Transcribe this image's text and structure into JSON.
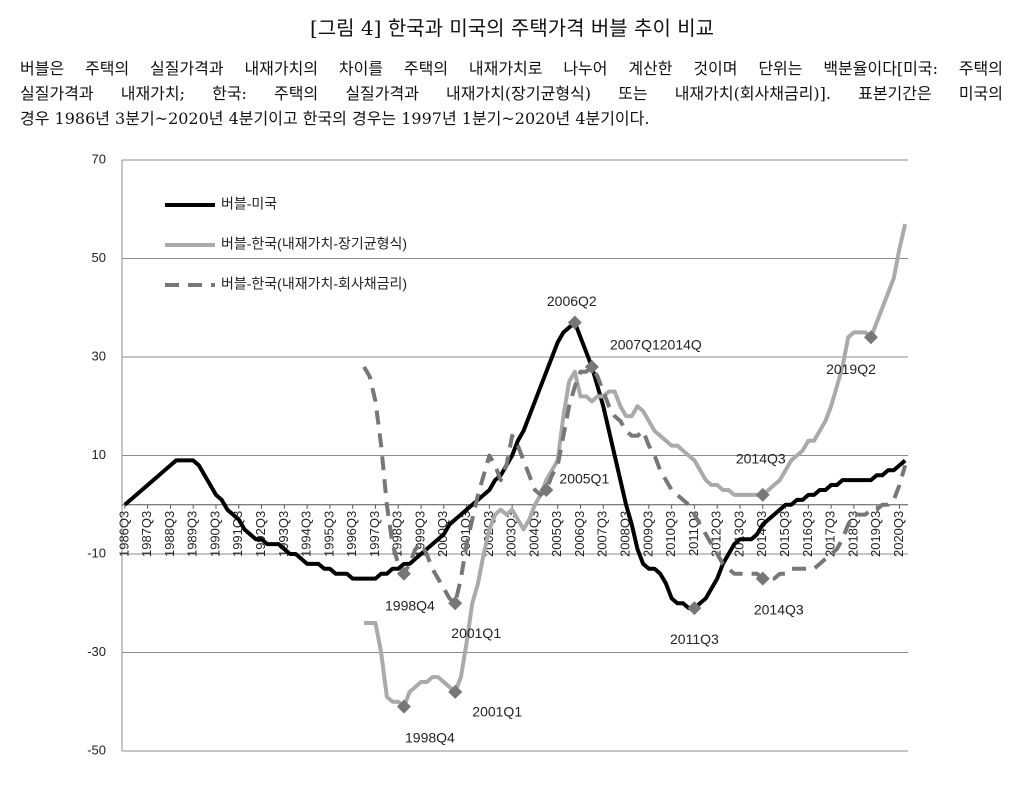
{
  "chart_data": {
    "type": "line",
    "title": "[그림 4] 한국과 미국의 주택가격 버블 추이 비교",
    "caption": [
      "버블은 주택의 실질가격과 내재가치의 차이를 주택의 내재가치로 나누어 계산한 것이며 단위는 백분율이다[미국: 주택의",
      "실질가격과 내재가치; 한국: 주택의 실질가격과 내재가치(장기균형식) 또는 내재가치(회사채금리)]. 표본기간은 미국의",
      "경우 1986년 3분기~2020년 4분기이고 한국의 경우는 1997년 1분기~2020년 4분기이다."
    ],
    "ylim": [
      -50,
      70
    ],
    "yticks": [
      -50,
      -30,
      -10,
      10,
      30,
      50,
      70
    ],
    "grid": true,
    "legend": "upper left",
    "categories": [
      "1986Q3",
      null,
      null,
      null,
      "1987Q3",
      null,
      null,
      null,
      "1988Q3",
      null,
      null,
      null,
      "1989Q3",
      null,
      null,
      null,
      "1990Q3",
      null,
      null,
      null,
      "1991Q3",
      null,
      null,
      null,
      "1992Q3",
      null,
      null,
      null,
      "1993Q3",
      null,
      null,
      null,
      "1994Q3",
      null,
      null,
      null,
      "1995Q3",
      null,
      null,
      null,
      "1996Q3",
      null,
      null,
      null,
      "1997Q3",
      null,
      null,
      null,
      "1998Q3",
      null,
      null,
      null,
      "1999Q3",
      null,
      null,
      null,
      "2000Q3",
      null,
      null,
      null,
      "2001Q3",
      null,
      null,
      null,
      "2002Q3",
      null,
      null,
      null,
      "2003Q3",
      null,
      null,
      null,
      "2004Q3",
      null,
      null,
      null,
      "2005Q3",
      null,
      null,
      null,
      "2006Q3",
      null,
      null,
      null,
      "2007Q3",
      null,
      null,
      null,
      "2008Q3",
      null,
      null,
      null,
      "2009Q3",
      null,
      null,
      null,
      "2010Q3",
      null,
      null,
      null,
      "2011Q3",
      null,
      null,
      null,
      "2012Q3",
      null,
      null,
      null,
      "2013Q3",
      null,
      null,
      null,
      "2014Q3",
      null,
      null,
      null,
      "2015Q3",
      null,
      null,
      null,
      "2016Q3",
      null,
      null,
      null,
      "2017Q3",
      null,
      null,
      null,
      "2018Q3",
      null,
      null,
      null,
      "2019Q3",
      null,
      null,
      null,
      "2020Q3",
      null
    ],
    "series": [
      {
        "name": "버블-미국",
        "color": "#000000",
        "linestyle": "solid",
        "values": [
          0,
          1,
          2,
          3,
          4,
          5,
          6,
          7,
          8,
          9,
          9,
          9,
          9,
          8,
          6,
          4,
          2,
          1,
          -1,
          -2,
          -3,
          -5,
          -6,
          -7,
          -7,
          -8,
          -8,
          -8,
          -9,
          -10,
          -10,
          -11,
          -12,
          -12,
          -12,
          -13,
          -13,
          -14,
          -14,
          -14,
          -15,
          -15,
          -15,
          -15,
          -15,
          -14,
          -14,
          -13,
          -13,
          -12,
          -12,
          -11,
          -10,
          -9,
          -8,
          -7,
          -6,
          -4,
          -3,
          -2,
          -1,
          0,
          1,
          2,
          3,
          5,
          6,
          8,
          10,
          13,
          15,
          18,
          21,
          24,
          27,
          30,
          33,
          35,
          36,
          37,
          34,
          31,
          28,
          24,
          20,
          15,
          10,
          5,
          0,
          -4,
          -9,
          -12,
          -13,
          -13,
          -14,
          -16,
          -19,
          -20,
          -20,
          -21,
          -21,
          -20,
          -19,
          -17,
          -15,
          -12,
          -10,
          -8,
          -7,
          -7,
          -7,
          -6,
          -4,
          -3,
          -2,
          -1,
          0,
          0,
          1,
          1,
          2,
          2,
          3,
          3,
          4,
          4,
          5,
          5,
          5,
          5,
          5,
          5,
          6,
          6,
          7,
          7,
          8,
          9
        ]
      },
      {
        "name": "버블-한국(내재가치-장기균형식)",
        "color": "#aaaaaa",
        "linestyle": "solid",
        "values": [
          null,
          null,
          null,
          null,
          null,
          null,
          null,
          null,
          null,
          null,
          null,
          null,
          null,
          null,
          null,
          null,
          null,
          null,
          null,
          null,
          null,
          null,
          null,
          null,
          null,
          null,
          null,
          null,
          null,
          null,
          null,
          null,
          null,
          null,
          null,
          null,
          null,
          null,
          null,
          null,
          null,
          null,
          -24,
          -24,
          -24,
          -30,
          -39,
          -40,
          -40,
          -41,
          -38,
          -37,
          -36,
          -36,
          -35,
          -35,
          -36,
          -37,
          -38,
          -35,
          -28,
          -20,
          -16,
          -10,
          -5,
          -2,
          -1,
          -2,
          -1,
          -3,
          -5,
          -3,
          0,
          2,
          5,
          7,
          9,
          18,
          25,
          27,
          22,
          22,
          21,
          22,
          22,
          23,
          23,
          20,
          18,
          18,
          20,
          19,
          17,
          15,
          14,
          13,
          12,
          12,
          11,
          10,
          9,
          7,
          5,
          4,
          4,
          3,
          3,
          2,
          2,
          2,
          2,
          2,
          2,
          3,
          4,
          5,
          7,
          9,
          10,
          11,
          13,
          13,
          15,
          17,
          20,
          24,
          28,
          34,
          35,
          35,
          35,
          34,
          37,
          40,
          43,
          46,
          52,
          57
        ]
      },
      {
        "name": "버블-한국(내재가치-회사채금리)",
        "color": "#777777",
        "linestyle": "dashed",
        "values": [
          null,
          null,
          null,
          null,
          null,
          null,
          null,
          null,
          null,
          null,
          null,
          null,
          null,
          null,
          null,
          null,
          null,
          null,
          null,
          null,
          null,
          null,
          null,
          null,
          null,
          null,
          null,
          null,
          null,
          null,
          null,
          null,
          null,
          null,
          null,
          null,
          null,
          null,
          null,
          null,
          null,
          null,
          28,
          26,
          21,
          12,
          0,
          -8,
          -12,
          -14,
          -12,
          -9,
          -8,
          -10,
          -13,
          -15,
          -17,
          -19,
          -20,
          -15,
          -8,
          -3,
          2,
          6,
          10,
          8,
          5,
          8,
          14,
          12,
          9,
          6,
          3,
          2,
          3,
          6,
          8,
          14,
          20,
          24,
          27,
          27,
          28,
          26,
          23,
          20,
          18,
          17,
          15,
          14,
          14,
          15,
          12,
          10,
          7,
          5,
          3,
          2,
          1,
          0,
          -2,
          -4,
          -6,
          -8,
          -10,
          -12,
          -13,
          -14,
          -14,
          -14,
          -14,
          -14,
          -15,
          -15,
          -15,
          -14,
          -14,
          -13,
          -13,
          -13,
          -13,
          -13,
          -12,
          -11,
          -10,
          -9,
          -7,
          -4,
          -2,
          -2,
          -2,
          -1,
          -1,
          0,
          0,
          1,
          4,
          8
        ]
      }
    ],
    "marker_color": "#777777",
    "annotations": [
      {
        "text": "2006Q2",
        "series": 0,
        "index": 79
      },
      {
        "text": "2011Q3",
        "series": 0,
        "index": 100
      },
      {
        "text": "1998Q4",
        "series": 1,
        "index": 49
      },
      {
        "text": "2001Q1",
        "series": 1,
        "index": 58
      },
      {
        "text": "2014Q3",
        "series": 1,
        "index": 112
      },
      {
        "text": "2019Q2",
        "series": 1,
        "index": 131
      },
      {
        "text": "1998Q4",
        "series": 2,
        "index": 49
      },
      {
        "text": "2001Q1",
        "series": 2,
        "index": 58
      },
      {
        "text": "2005Q1",
        "series": 2,
        "index": 74
      },
      {
        "text": "2007Q12014Q",
        "series": 2,
        "index": 82
      },
      {
        "text": "2014Q3",
        "series": 2,
        "index": 112
      }
    ]
  }
}
